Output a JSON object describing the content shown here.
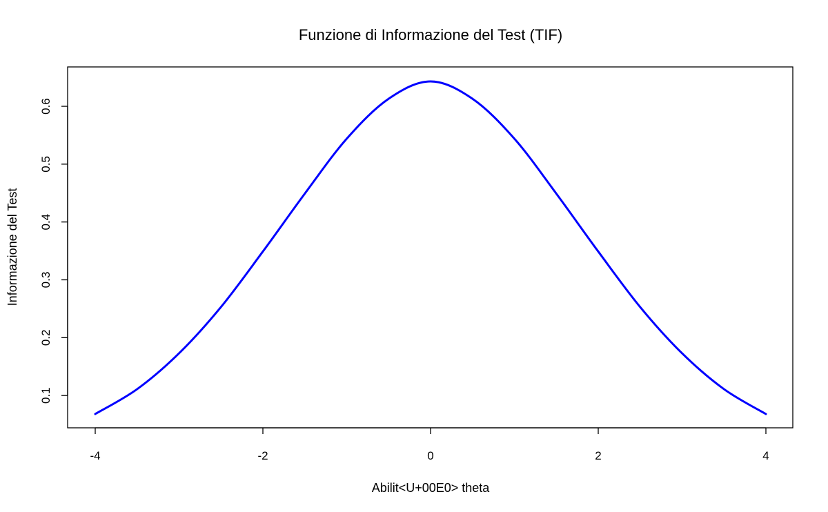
{
  "chart_data": {
    "type": "line",
    "title": "Funzione di Informazione del Test (TIF)",
    "xlabel": "Abilit<U+00E0> theta",
    "ylabel": "Informazione del Test",
    "xlim": [
      -4,
      4
    ],
    "ylim": [
      0.068,
      0.643
    ],
    "xticks": [
      -4,
      -2,
      0,
      2,
      4
    ],
    "xtick_labels": [
      "-4",
      "-2",
      "0",
      "2",
      "4"
    ],
    "yticks": [
      0.1,
      0.2,
      0.3,
      0.4,
      0.5,
      0.6
    ],
    "ytick_labels": [
      "0.1",
      "0.2",
      "0.3",
      "0.4",
      "0.5",
      "0.6"
    ],
    "grid": false,
    "series": [
      {
        "color": "#0000ff",
        "x": [
          -4,
          -3.5,
          -3,
          -2.5,
          -2,
          -1.5,
          -1,
          -0.5,
          0,
          0.5,
          1,
          1.5,
          2,
          2.5,
          3,
          3.5,
          4
        ],
        "y": [
          0.068,
          0.111,
          0.173,
          0.253,
          0.349,
          0.449,
          0.544,
          0.613,
          0.643,
          0.613,
          0.544,
          0.449,
          0.349,
          0.253,
          0.173,
          0.111,
          0.068
        ]
      }
    ]
  }
}
